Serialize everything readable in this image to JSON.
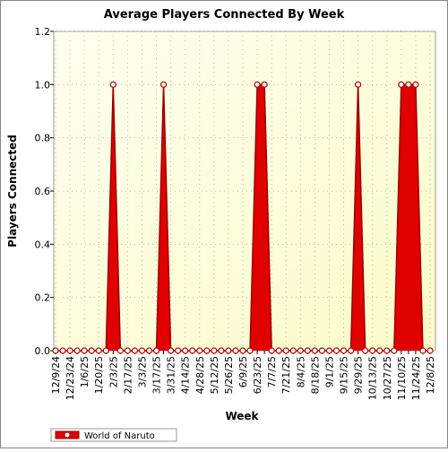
{
  "chart_data": {
    "type": "area",
    "title": "Average Players Connected By Week",
    "x_label": "Week",
    "y_label": "Players Connected",
    "categories": [
      "12/9/24",
      null,
      "12/23/24",
      null,
      "1/6/25",
      null,
      "1/20/25",
      null,
      "2/3/25",
      null,
      "2/17/25",
      null,
      "3/3/25",
      null,
      "3/17/25",
      null,
      "3/31/25",
      null,
      "4/14/25",
      null,
      "4/28/25",
      null,
      "5/12/25",
      null,
      "5/26/25",
      null,
      "6/9/25",
      null,
      "6/23/25",
      null,
      "7/7/25",
      null,
      "7/21/25",
      null,
      "8/4/25",
      null,
      "8/18/25",
      null,
      "9/1/25",
      null,
      "9/15/25",
      null,
      "9/29/25",
      null,
      "10/13/25",
      null,
      "10/27/25",
      null,
      "11/10/25",
      null,
      "11/24/25",
      null,
      "12/8/25"
    ],
    "series": [
      {
        "name": "World of Naruto",
        "color": "#e00000",
        "values": [
          0,
          0,
          0,
          0,
          0,
          0,
          0,
          0,
          1,
          0,
          0,
          0,
          0,
          0,
          0,
          1,
          0,
          0,
          0,
          0,
          0,
          0,
          0,
          0,
          0,
          0,
          0,
          0,
          1,
          1,
          0,
          0,
          0,
          0,
          0,
          0,
          0,
          0,
          0,
          0,
          0,
          0,
          1,
          0,
          0,
          0,
          0,
          0,
          1,
          1,
          1,
          0,
          0
        ]
      }
    ],
    "ylim": [
      0,
      1.2
    ],
    "yticks": [
      {
        "value": 0,
        "label": "0.0"
      },
      {
        "value": 0.2,
        "label": "0.2"
      },
      {
        "value": 0.4,
        "label": "0.4"
      },
      {
        "value": 0.6,
        "label": "0.6"
      },
      {
        "value": 0.8,
        "label": "0.8"
      },
      {
        "value": 1,
        "label": "1.0"
      },
      {
        "value": 1.2,
        "label": "1.2"
      }
    ],
    "grid": true,
    "legend": "bottom-left"
  }
}
